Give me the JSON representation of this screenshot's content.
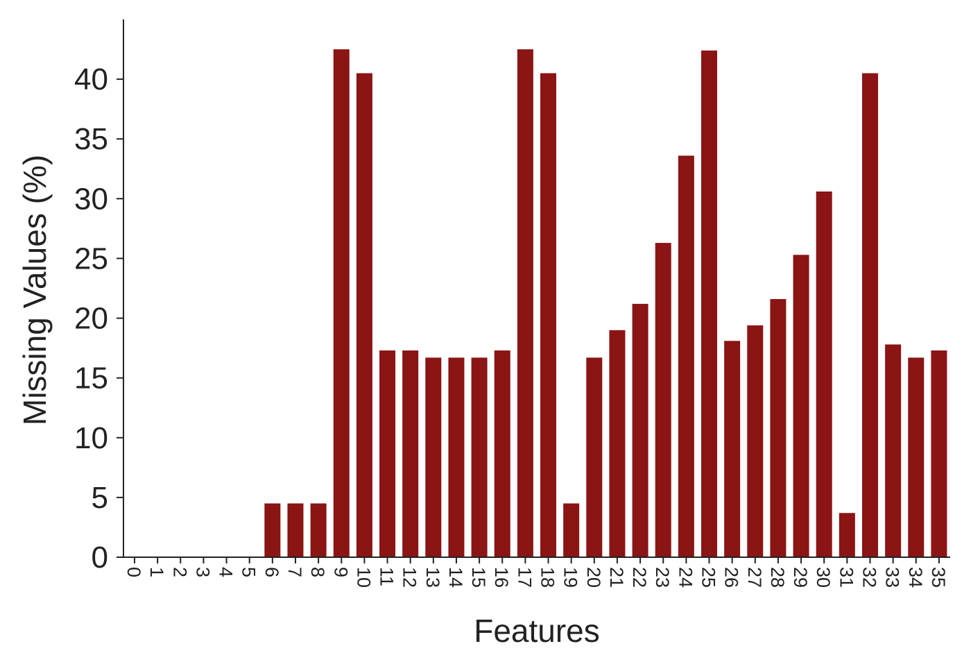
{
  "chart_data": {
    "type": "bar",
    "title": "",
    "xlabel": "Features",
    "ylabel": "Missing Values (%)",
    "ylim": [
      0,
      45
    ],
    "yticks": [
      0,
      5,
      10,
      15,
      20,
      25,
      30,
      35,
      40
    ],
    "grid": false,
    "legend": "none",
    "bar_color": "#8b1414",
    "categories": [
      "0",
      "1",
      "2",
      "3",
      "4",
      "5",
      "6",
      "7",
      "8",
      "9",
      "10",
      "11",
      "12",
      "13",
      "14",
      "15",
      "16",
      "17",
      "18",
      "19",
      "20",
      "21",
      "22",
      "23",
      "24",
      "25",
      "26",
      "27",
      "28",
      "29",
      "30",
      "31",
      "32",
      "33",
      "34",
      "35"
    ],
    "values": [
      0,
      0,
      0,
      0,
      0,
      0,
      4.5,
      4.5,
      4.5,
      42.5,
      40.5,
      17.3,
      17.3,
      16.7,
      16.7,
      16.7,
      17.3,
      42.5,
      40.5,
      4.5,
      16.7,
      19.0,
      21.2,
      26.3,
      33.6,
      42.4,
      18.1,
      19.4,
      21.6,
      25.3,
      30.6,
      3.7,
      40.5,
      17.8,
      16.7,
      17.3
    ]
  }
}
